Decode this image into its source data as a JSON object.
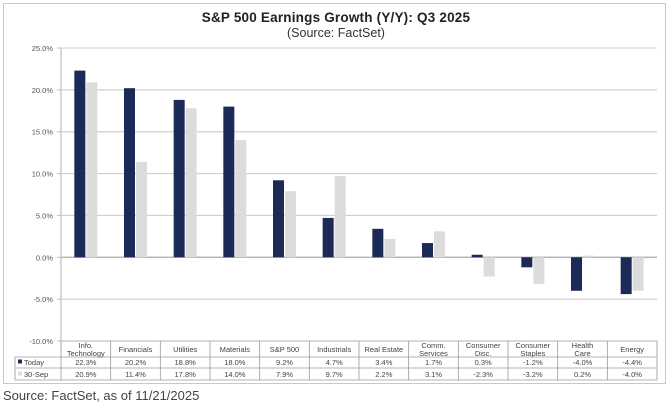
{
  "chart_data": {
    "type": "bar",
    "title": "S&P 500 Earnings Growth (Y/Y): Q3 2025",
    "subtitle": "(Source: FactSet)",
    "xlabel": "",
    "ylabel": "",
    "ylim": [
      -10,
      25
    ],
    "yticks": [
      25,
      20,
      15,
      10,
      5,
      0,
      -5,
      -10
    ],
    "ytick_labels": [
      "25.0%",
      "20.0%",
      "15.0%",
      "10.0%",
      "5.0%",
      "0.0%",
      "-5.0%",
      "-10.0%"
    ],
    "grid": true,
    "legend": "data-table-left",
    "categories": [
      "Info. Technology",
      "Financials",
      "Utilities",
      "Materials",
      "S&P 500",
      "Industrials",
      "Real Estate",
      "Comm. Services",
      "Consumer Disc.",
      "Consumer Staples",
      "Health Care",
      "Energy"
    ],
    "category_lines": [
      [
        "Info.",
        "Technology"
      ],
      [
        "Financials"
      ],
      [
        "Utilities"
      ],
      [
        "Materials"
      ],
      [
        "S&P 500"
      ],
      [
        "Industrials"
      ],
      [
        "Real Estate"
      ],
      [
        "Comm.",
        "Services"
      ],
      [
        "Consumer",
        "Disc."
      ],
      [
        "Consumer",
        "Staples"
      ],
      [
        "Health",
        "Care"
      ],
      [
        "Energy"
      ]
    ],
    "series": [
      {
        "name": "Today",
        "color": "#1b2a57",
        "values": [
          22.3,
          20.2,
          18.8,
          18.0,
          9.2,
          4.7,
          3.4,
          1.7,
          0.3,
          -1.2,
          -4.0,
          -4.4
        ],
        "labels": [
          "22.3%",
          "20.2%",
          "18.8%",
          "18.0%",
          "9.2%",
          "4.7%",
          "3.4%",
          "1.7%",
          "0.3%",
          "-1.2%",
          "-4.0%",
          "-4.4%"
        ]
      },
      {
        "name": "30-Sep",
        "color": "#dcdcdc",
        "values": [
          20.9,
          11.4,
          17.8,
          14.0,
          7.9,
          9.7,
          2.2,
          3.1,
          -2.3,
          -3.2,
          0.2,
          -4.0
        ],
        "labels": [
          "20.9%",
          "11.4%",
          "17.8%",
          "14.0%",
          "7.9%",
          "9.7%",
          "2.2%",
          "3.1%",
          "-2.3%",
          "-3.2%",
          "0.2%",
          "-4.0%"
        ]
      }
    ]
  },
  "footer": {
    "source": "Source: FactSet, as of 11/21/2025"
  }
}
